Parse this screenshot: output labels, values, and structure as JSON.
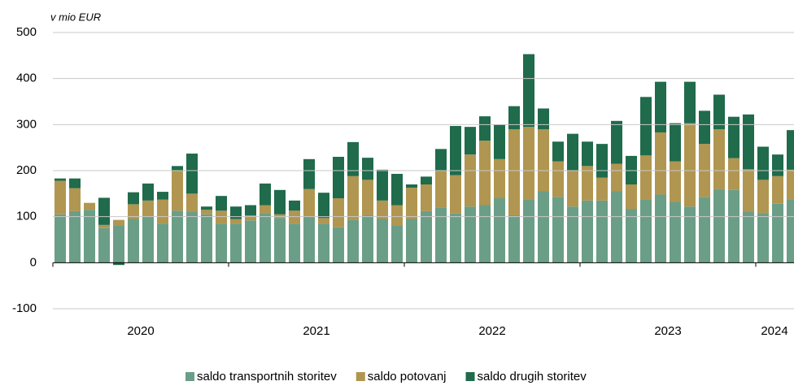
{
  "chart_data": {
    "type": "stacked-bar",
    "unit_label": "v mio EUR",
    "years": [
      "2020",
      "2021",
      "2022",
      "2023",
      "2024"
    ],
    "ylim": [
      -100,
      500
    ],
    "yticks": [
      -100,
      0,
      100,
      200,
      300,
      400,
      500
    ],
    "grid": true,
    "legend": "bottom",
    "series": [
      {
        "name": "saldo transportnih storitev",
        "color": "#6b9e87",
        "values": [
          105,
          112,
          115,
          75,
          80,
          95,
          100,
          85,
          113,
          110,
          105,
          85,
          85,
          92,
          108,
          97,
          85,
          100,
          85,
          77,
          93,
          103,
          95,
          80,
          95,
          112,
          120,
          107,
          122,
          125,
          140,
          103,
          138,
          155,
          143,
          122,
          135,
          135,
          155,
          117,
          138,
          148,
          132,
          122,
          143,
          160,
          158,
          110,
          108,
          128,
          138
        ]
      },
      {
        "name": "saldo potovanj",
        "color": "#b09650",
        "values": [
          73,
          50,
          15,
          7,
          13,
          32,
          35,
          52,
          87,
          40,
          10,
          28,
          10,
          11,
          17,
          8,
          28,
          60,
          12,
          63,
          95,
          77,
          40,
          45,
          68,
          58,
          80,
          83,
          113,
          140,
          85,
          187,
          157,
          135,
          77,
          78,
          75,
          50,
          60,
          53,
          95,
          135,
          88,
          181,
          115,
          130,
          69,
          93,
          72,
          60,
          64
        ]
      },
      {
        "name": "saldo drugih storitev",
        "color": "#1f6b4c",
        "values": [
          5,
          21,
          0,
          59,
          -5,
          26,
          37,
          17,
          10,
          87,
          7,
          32,
          27,
          22,
          47,
          53,
          22,
          65,
          55,
          90,
          74,
          48,
          67,
          68,
          7,
          17,
          47,
          107,
          60,
          53,
          75,
          50,
          158,
          45,
          43,
          80,
          53,
          73,
          93,
          62,
          127,
          110,
          83,
          90,
          72,
          75,
          90,
          119,
          72,
          47,
          86
        ]
      }
    ]
  }
}
